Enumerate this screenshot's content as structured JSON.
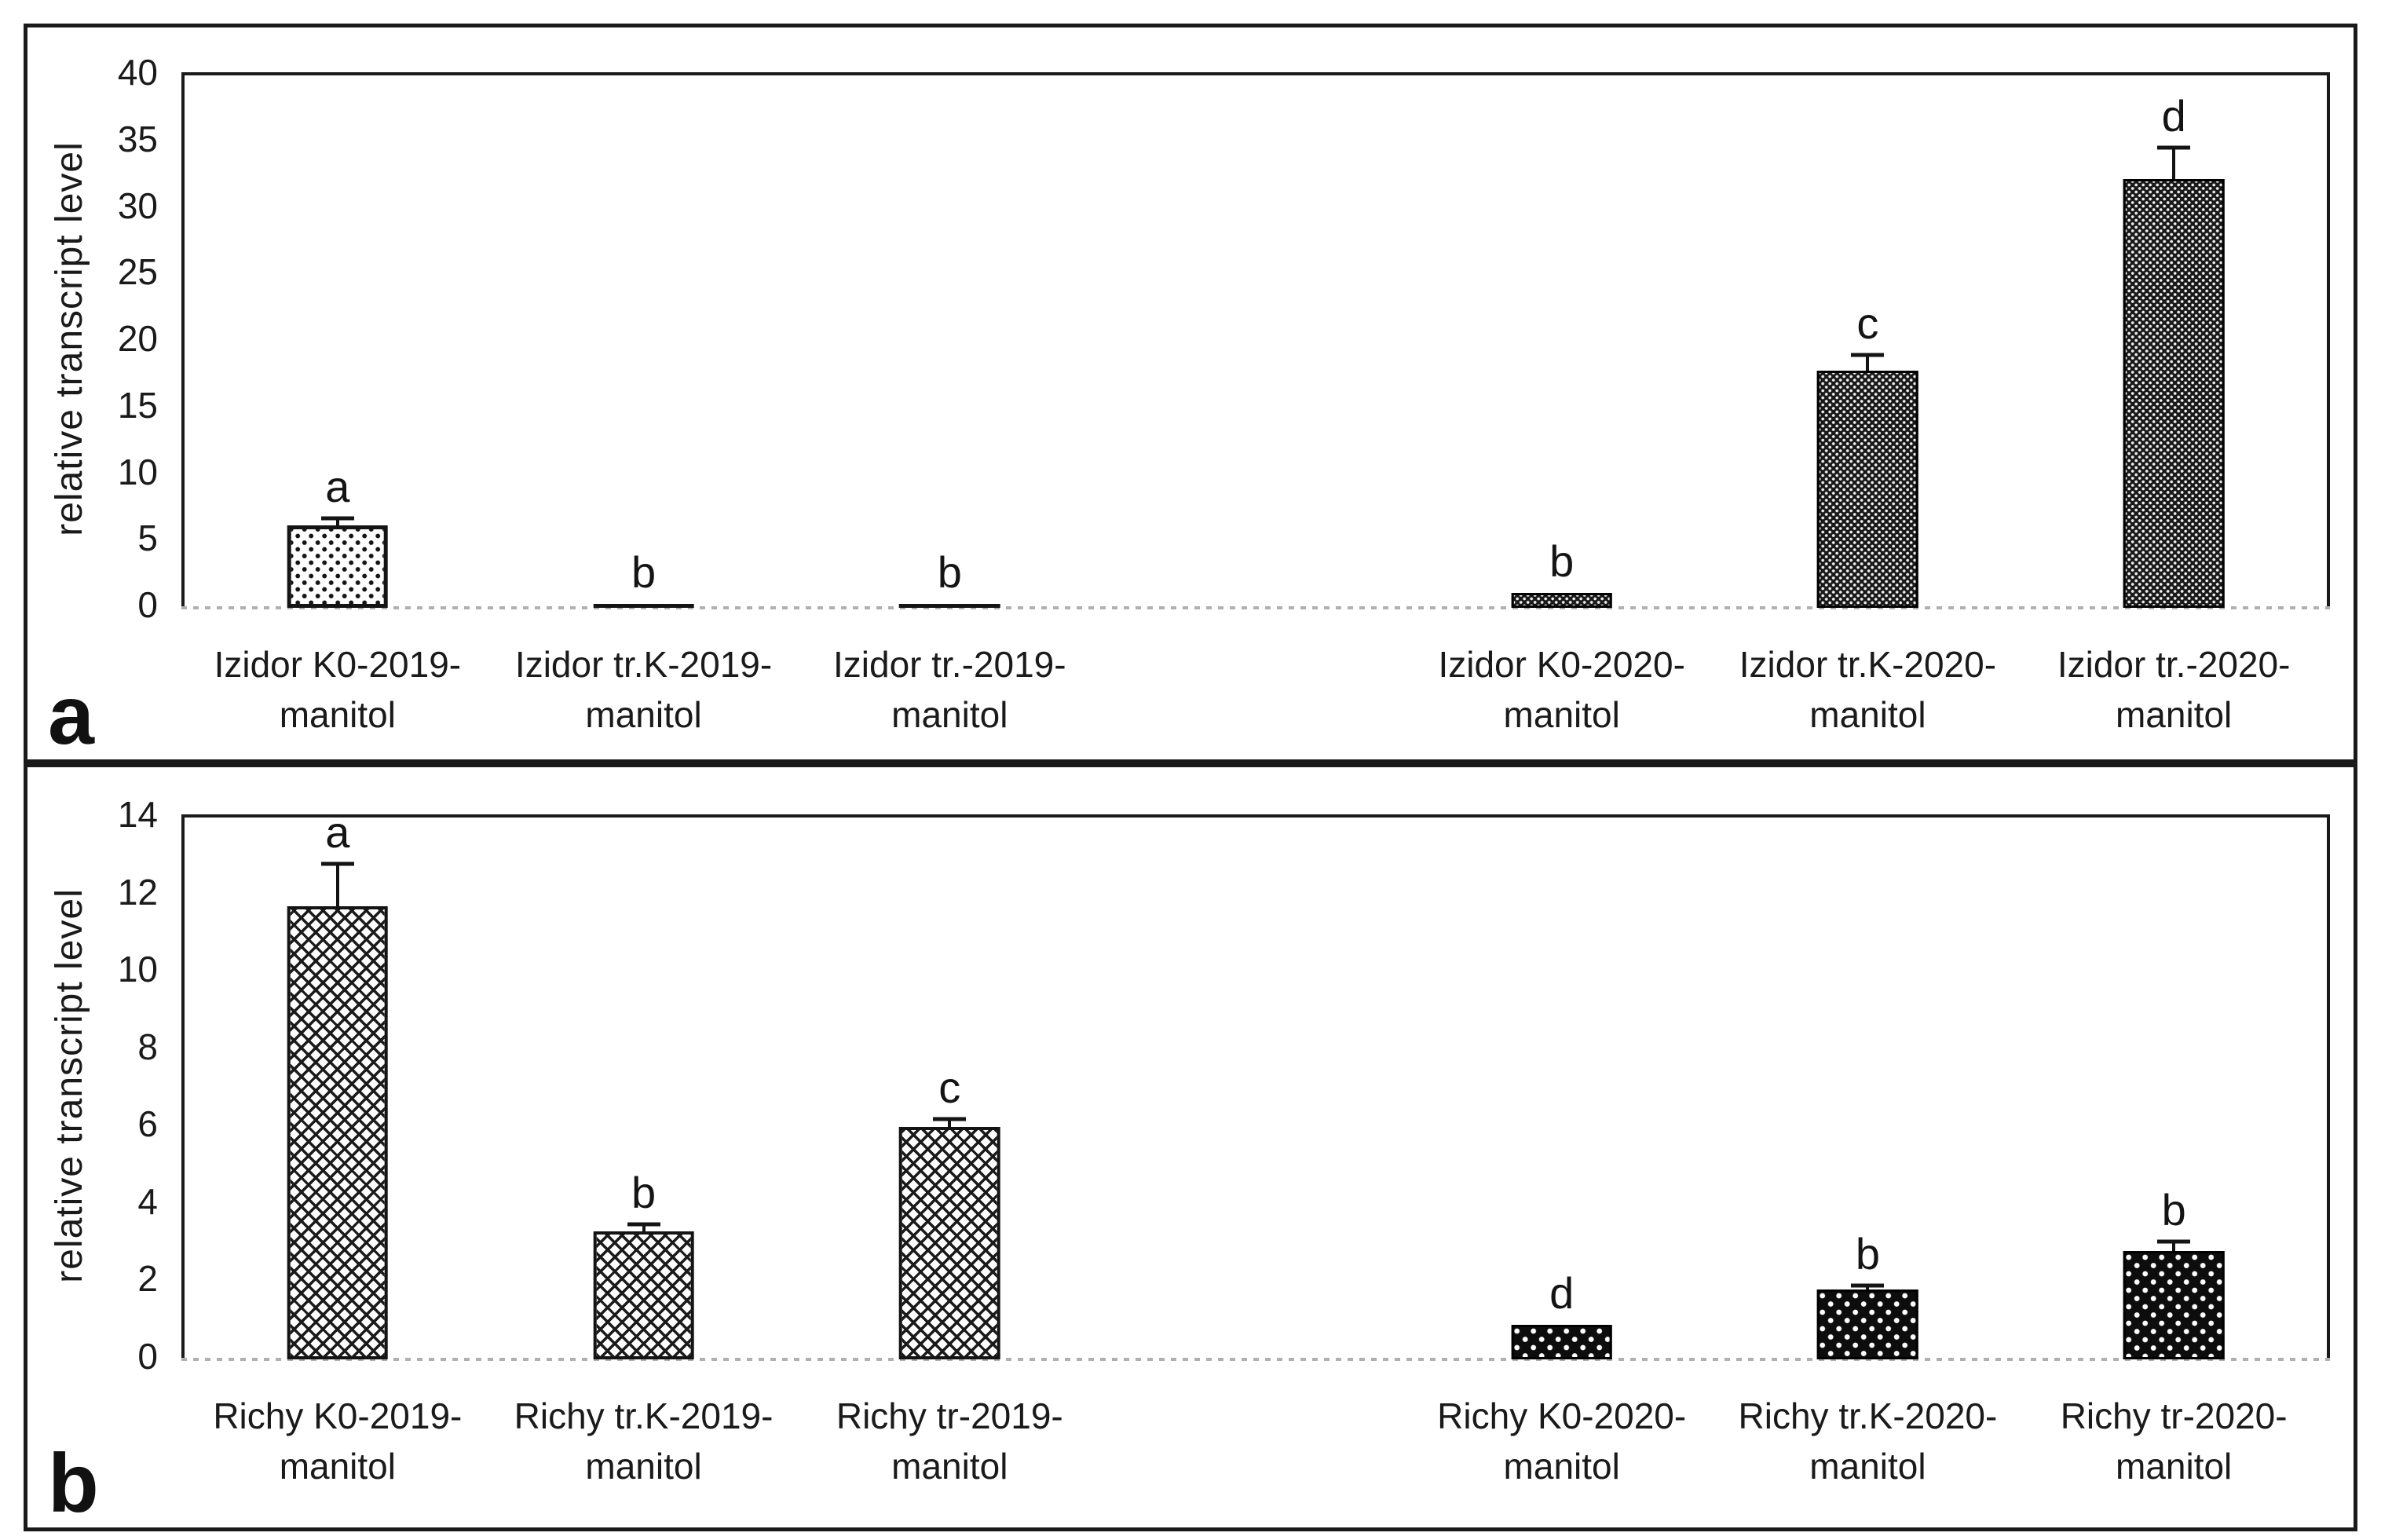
{
  "figure": {
    "background_color": "#ffffff",
    "frame_color": "#1a1a1a",
    "ink_color": "#141414",
    "baseline_color": "#b0b0b0"
  },
  "chart_data": [
    {
      "type": "bar",
      "panel_label": "a",
      "title": "",
      "xlabel": "",
      "ylabel": "relative transcript level",
      "ylim": [
        0,
        40
      ],
      "ytick_step": 5,
      "yticks": [
        40,
        35,
        30,
        25,
        20,
        15,
        10,
        5,
        0
      ],
      "grid": false,
      "legend_position": "none",
      "num_slots": 7,
      "categories": [
        "Izidor K0-2019-manitol",
        "Izidor tr.K-2019-manitol",
        "Izidor tr.-2019-manitol",
        "Izidor K0-2020-manitol",
        "Izidor tr.K-2020-manitol",
        "Izidor tr.-2020-manitol"
      ],
      "bars": [
        {
          "slot": 0,
          "category": "Izidor K0-2019-manitol",
          "label_lines": [
            "Izidor K0-2019-",
            "manitol"
          ],
          "value": 6.2,
          "error": 0.5,
          "sig_letter": "a",
          "pattern": "dots-open"
        },
        {
          "slot": 1,
          "category": "Izidor tr.K-2019-manitol",
          "label_lines": [
            "Izidor tr.K-2019-",
            "manitol"
          ],
          "value": 0.3,
          "error": 0,
          "sig_letter": "b",
          "pattern": "solid-black"
        },
        {
          "slot": 2,
          "category": "Izidor tr.-2019-manitol",
          "label_lines": [
            "Izidor tr.-2019-",
            "manitol"
          ],
          "value": 0.3,
          "error": 0,
          "sig_letter": "b",
          "pattern": "solid-black"
        },
        {
          "slot": 4,
          "category": "Izidor K0-2020-manitol",
          "label_lines": [
            "Izidor K0-2020-",
            "manitol"
          ],
          "value": 1.1,
          "error": 0,
          "sig_letter": "b",
          "pattern": "dots-dense-dark"
        },
        {
          "slot": 5,
          "category": "Izidor tr.K-2020-manitol",
          "label_lines": [
            "Izidor tr.K-2020-",
            "manitol"
          ],
          "value": 17.8,
          "error": 1.2,
          "sig_letter": "c",
          "pattern": "dots-dense-dark"
        },
        {
          "slot": 6,
          "category": "Izidor tr.-2020-manitol",
          "label_lines": [
            "Izidor tr.-2020-",
            "manitol"
          ],
          "value": 32.2,
          "error": 2.4,
          "sig_letter": "d",
          "pattern": "dots-dense-dark"
        }
      ]
    },
    {
      "type": "bar",
      "panel_label": "b",
      "title": "",
      "xlabel": "",
      "ylabel": "relative transcript level",
      "ylim": [
        0,
        14
      ],
      "ytick_step": 2,
      "yticks": [
        14,
        12,
        10,
        8,
        6,
        4,
        2,
        0
      ],
      "grid": false,
      "legend_position": "none",
      "num_slots": 7,
      "categories": [
        "Richy K0-2019-manitol",
        "Richy tr.K-2019-manitol",
        "Richy tr-2019-manitol",
        "Richy K0-2020-manitol",
        "Richy tr.K-2020-manitol",
        "Richy tr-2020-manitol"
      ],
      "bars": [
        {
          "slot": 0,
          "category": "Richy K0-2019-manitol",
          "label_lines": [
            "Richy K0-2019-",
            "manitol"
          ],
          "value": 11.7,
          "error": 1.1,
          "sig_letter": "a",
          "pattern": "crosshatch"
        },
        {
          "slot": 1,
          "category": "Richy tr.K-2019-manitol",
          "label_lines": [
            "Richy tr.K-2019-",
            "manitol"
          ],
          "value": 3.3,
          "error": 0.2,
          "sig_letter": "b",
          "pattern": "crosshatch"
        },
        {
          "slot": 2,
          "category": "Richy tr-2019-manitol",
          "label_lines": [
            "Richy tr-2019-",
            "manitol"
          ],
          "value": 6.0,
          "error": 0.2,
          "sig_letter": "c",
          "pattern": "crosshatch"
        },
        {
          "slot": 4,
          "category": "Richy K0-2020-manitol",
          "label_lines": [
            "Richy K0-2020-",
            "manitol"
          ],
          "value": 0.9,
          "error": 0,
          "sig_letter": "d",
          "pattern": "dots-sparse-dark"
        },
        {
          "slot": 5,
          "category": "Richy tr.K-2020-manitol",
          "label_lines": [
            "Richy tr.K-2020-",
            "manitol"
          ],
          "value": 1.8,
          "error": 0.1,
          "sig_letter": "b",
          "pattern": "dots-sparse-dark"
        },
        {
          "slot": 6,
          "category": "Richy tr-2020-manitol",
          "label_lines": [
            "Richy tr-2020-",
            "manitol"
          ],
          "value": 2.8,
          "error": 0.25,
          "sig_letter": "b",
          "pattern": "dots-sparse-dark"
        }
      ]
    }
  ]
}
